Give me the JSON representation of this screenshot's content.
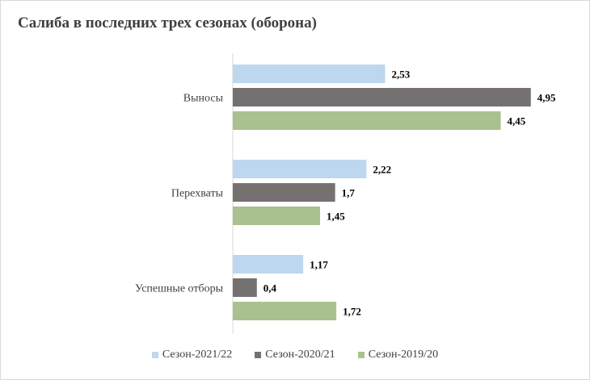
{
  "chart_data": {
    "type": "bar",
    "orientation": "horizontal",
    "title": "Салиба в последних трех сезонах (оборона)",
    "categories": [
      "Выносы",
      "Перехваты",
      "Успешные отборы"
    ],
    "series": [
      {
        "name": "Сезон-2021/22",
        "color": "#bdd7ee",
        "values": [
          2.53,
          2.22,
          1.17
        ],
        "labels": [
          "2,53",
          "2,22",
          "1,17"
        ]
      },
      {
        "name": "Сезон-2020/21",
        "color": "#767171",
        "values": [
          4.95,
          1.7,
          0.4
        ],
        "labels": [
          "4,95",
          "1,7",
          "0,4"
        ]
      },
      {
        "name": "Сезон-2019/20",
        "color": "#a9c18f",
        "values": [
          4.45,
          1.45,
          1.72
        ],
        "labels": [
          "4,45",
          "1,45",
          "1,72"
        ]
      }
    ],
    "legend_position": "bottom",
    "grid": false
  }
}
